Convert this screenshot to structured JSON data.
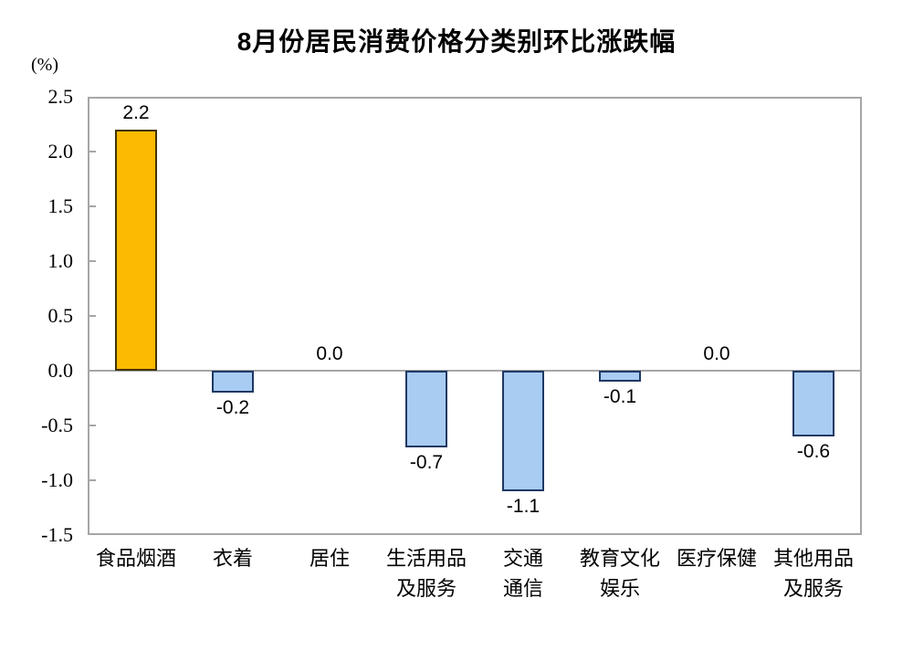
{
  "chart_data": {
    "type": "bar",
    "title": "8月份居民消费价格分类别环比涨跌幅",
    "unit_label": "(%)",
    "categories": [
      "食品烟酒",
      "衣着",
      "居住",
      "生活用品\n及服务",
      "交通\n通信",
      "教育文化\n娱乐",
      "医疗保健",
      "其他用品\n及服务"
    ],
    "values": [
      2.2,
      -0.2,
      0.0,
      -0.7,
      -1.1,
      -0.1,
      0.0,
      -0.6
    ],
    "data_labels": [
      "2.2",
      "-0.2",
      "0.0",
      "-0.7",
      "-1.1",
      "-0.1",
      "0.0",
      "-0.6"
    ],
    "ylim": [
      -1.5,
      2.5
    ],
    "ytick_step": 0.5,
    "ytick_labels": [
      "2.5",
      "2.0",
      "1.5",
      "1.0",
      "0.5",
      "0.0",
      "-0.5",
      "-1.0",
      "-1.5"
    ],
    "grid": false,
    "legend": "none",
    "colors": {
      "positive_fill": "#FCBB00",
      "positive_border": "#423305",
      "negative_fill": "#A8CCF2",
      "negative_border": "#1F3864",
      "axis": "#A6A6A6",
      "text": "#000000"
    }
  }
}
